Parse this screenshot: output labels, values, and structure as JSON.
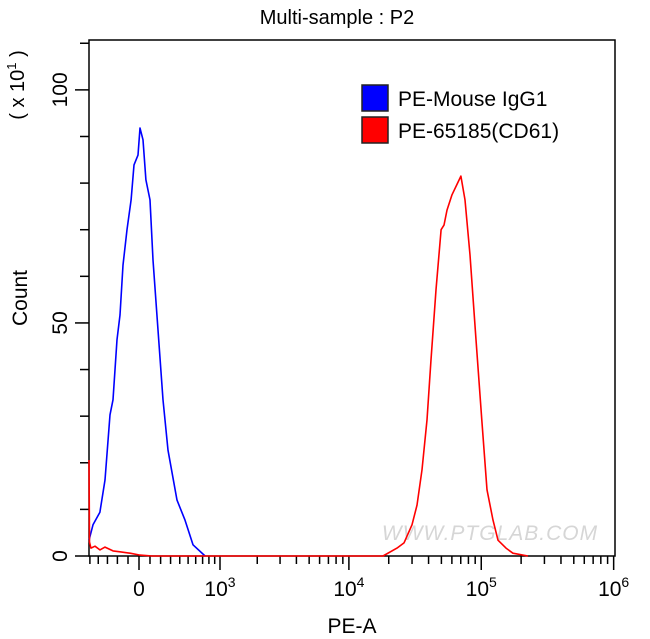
{
  "chart_data": {
    "type": "line",
    "title": "Multi-sample : P2",
    "xlabel": "PE-A",
    "ylabel": "Count",
    "y_multiplier": {
      "base": "( x 10",
      "exp": "1",
      "close": " )"
    },
    "x_scale": "biexponential",
    "xlim": [
      -510,
      1000000
    ],
    "ylim": [
      0,
      110
    ],
    "x_ticks": [
      {
        "value": 0,
        "label": "0",
        "exp": ""
      },
      {
        "value": 1000,
        "label": "10",
        "exp": "3"
      },
      {
        "value": 10000,
        "label": "10",
        "exp": "4"
      },
      {
        "value": 100000,
        "label": "10",
        "exp": "5"
      },
      {
        "value": 1000000,
        "label": "10",
        "exp": "6"
      }
    ],
    "y_ticks": [
      {
        "value": 0,
        "label": "0"
      },
      {
        "value": 50,
        "label": "50"
      },
      {
        "value": 100,
        "label": "100"
      }
    ],
    "grid": false,
    "legend_position": "top-right",
    "series": [
      {
        "name": "PE-Mouse IgG1",
        "color": "#0000ff",
        "x": [
          -511,
          -462,
          -381,
          -326,
          -274,
          -243,
          -204,
          -175,
          -147,
          -109,
          -72,
          -45,
          -9,
          9,
          36,
          63,
          100,
          128,
          175,
          223,
          274,
          369,
          462,
          563,
          738
        ],
        "y": [
          3.4,
          6.7,
          9.4,
          16.3,
          30.3,
          33.5,
          46.4,
          51.7,
          62.4,
          70,
          76.4,
          83.9,
          86,
          91.8,
          89.3,
          80.7,
          76.4,
          63.5,
          48.5,
          33.5,
          22.7,
          12,
          7.7,
          2.4,
          0
        ]
      },
      {
        "name": "PE-65185(CD61)",
        "color": "#ff0000",
        "x": [
          -511,
          -505,
          -487,
          -438,
          -381,
          -326,
          -243,
          -175,
          -81,
          9,
          120,
          18100,
          23100,
          26100,
          30000,
          32700,
          35700,
          38900,
          41700,
          45500,
          49700,
          52300,
          55100,
          60100,
          70200,
          75400,
          82200,
          91300,
          101000,
          110500,
          122700,
          133700,
          153700,
          173500,
          225000
        ],
        "y": [
          20.6,
          3,
          1.7,
          2.1,
          1.3,
          1.9,
          1.1,
          0.9,
          0.6,
          0.2,
          0,
          0,
          1.7,
          2.8,
          6.7,
          10.9,
          18.5,
          29.2,
          42.1,
          57.1,
          70,
          71,
          74.2,
          77.5,
          81.5,
          76.4,
          64.6,
          46.4,
          29.2,
          14.2,
          7.7,
          3.4,
          1.7,
          0.6,
          0
        ]
      }
    ]
  },
  "watermark": "WWW.PTGLAB.COM"
}
